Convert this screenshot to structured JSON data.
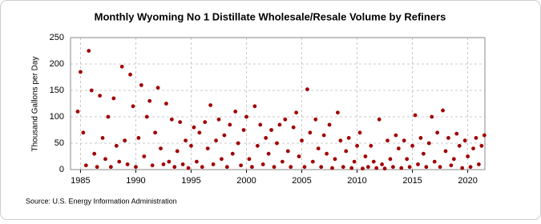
{
  "chart_data": {
    "type": "scatter",
    "title": "Monthly Wyoming No 1 Distillate Wholesale/Resale Volume by Refiners",
    "y_label": "Thousand Gallons per Day",
    "source": "Source: U.S. Energy Information Administration",
    "x": [
      1984.75,
      1985.0,
      1985.25,
      1985.5,
      1985.75,
      1986.0,
      1986.25,
      1986.5,
      1986.75,
      1987.0,
      1987.25,
      1987.5,
      1987.75,
      1988.0,
      1988.25,
      1988.5,
      1988.75,
      1989.0,
      1989.25,
      1989.5,
      1989.75,
      1990.0,
      1990.25,
      1990.5,
      1990.75,
      1991.0,
      1991.25,
      1991.5,
      1991.75,
      1992.0,
      1992.25,
      1992.5,
      1992.75,
      1993.0,
      1993.25,
      1993.5,
      1993.75,
      1994.0,
      1994.25,
      1994.5,
      1994.75,
      1995.0,
      1995.25,
      1995.5,
      1995.75,
      1996.0,
      1996.25,
      1996.5,
      1996.75,
      1997.0,
      1997.25,
      1997.5,
      1997.75,
      1998.0,
      1998.25,
      1998.5,
      1998.75,
      1999.0,
      1999.25,
      1999.5,
      1999.75,
      2000.0,
      2000.25,
      2000.5,
      2000.75,
      2001.0,
      2001.25,
      2001.5,
      2001.75,
      2002.0,
      2002.25,
      2002.5,
      2002.75,
      2003.0,
      2003.25,
      2003.5,
      2003.75,
      2004.0,
      2004.25,
      2004.5,
      2004.75,
      2005.0,
      2005.25,
      2005.5,
      2005.75,
      2006.0,
      2006.25,
      2006.5,
      2006.75,
      2007.0,
      2007.25,
      2007.5,
      2007.75,
      2008.0,
      2008.25,
      2008.5,
      2008.75,
      2009.0,
      2009.25,
      2009.5,
      2009.75,
      2010.0,
      2010.25,
      2010.5,
      2010.75,
      2011.0,
      2011.25,
      2011.5,
      2011.75,
      2012.0,
      2012.25,
      2012.5,
      2012.75,
      2013.0,
      2013.25,
      2013.5,
      2013.75,
      2014.0,
      2014.25,
      2014.5,
      2014.75,
      2015.0,
      2015.25,
      2015.5,
      2015.75,
      2016.0,
      2016.25,
      2016.5,
      2016.75,
      2017.0,
      2017.25,
      2017.5,
      2017.75,
      2018.0,
      2018.25,
      2018.5,
      2018.75,
      2019.0,
      2019.25,
      2019.5,
      2019.75,
      2020.0,
      2020.25,
      2020.5,
      2020.75,
      2021.0,
      2021.25,
      2021.5
    ],
    "series": [
      {
        "color": "#a00000",
        "values": [
          110,
          185,
          70,
          8,
          225,
          150,
          30,
          5,
          140,
          60,
          20,
          100,
          5,
          135,
          45,
          15,
          195,
          55,
          10,
          180,
          120,
          5,
          60,
          160,
          25,
          100,
          130,
          8,
          70,
          155,
          40,
          10,
          125,
          15,
          95,
          5,
          35,
          90,
          10,
          55,
          3,
          45,
          80,
          15,
          70,
          5,
          90,
          40,
          122,
          10,
          55,
          95,
          20,
          65,
          5,
          85,
          30,
          110,
          50,
          8,
          75,
          100,
          20,
          5,
          120,
          45,
          85,
          10,
          60,
          30,
          75,
          5,
          50,
          85,
          15,
          95,
          35,
          5,
          80,
          108,
          25,
          55,
          5,
          152,
          70,
          15,
          95,
          40,
          5,
          65,
          30,
          85,
          3,
          20,
          108,
          55,
          5,
          35,
          60,
          3,
          15,
          45,
          70,
          2,
          25,
          5,
          45,
          15,
          3,
          95,
          10,
          2,
          55,
          20,
          5,
          65,
          40,
          3,
          55,
          20,
          5,
          45,
          103,
          10,
          60,
          30,
          5,
          50,
          100,
          15,
          70,
          5,
          112,
          35,
          60,
          8,
          20,
          68,
          45,
          3,
          55,
          25,
          5,
          40,
          60,
          10,
          45,
          65
        ]
      }
    ],
    "xlim": [
      1984.1,
      2021.55
    ],
    "ylim": [
      0,
      250
    ],
    "xticks": [
      1985,
      1990,
      1995,
      2000,
      2005,
      2010,
      2015,
      2020
    ],
    "yticks": [
      0,
      50,
      100,
      150,
      200,
      250
    ],
    "grid": true
  }
}
